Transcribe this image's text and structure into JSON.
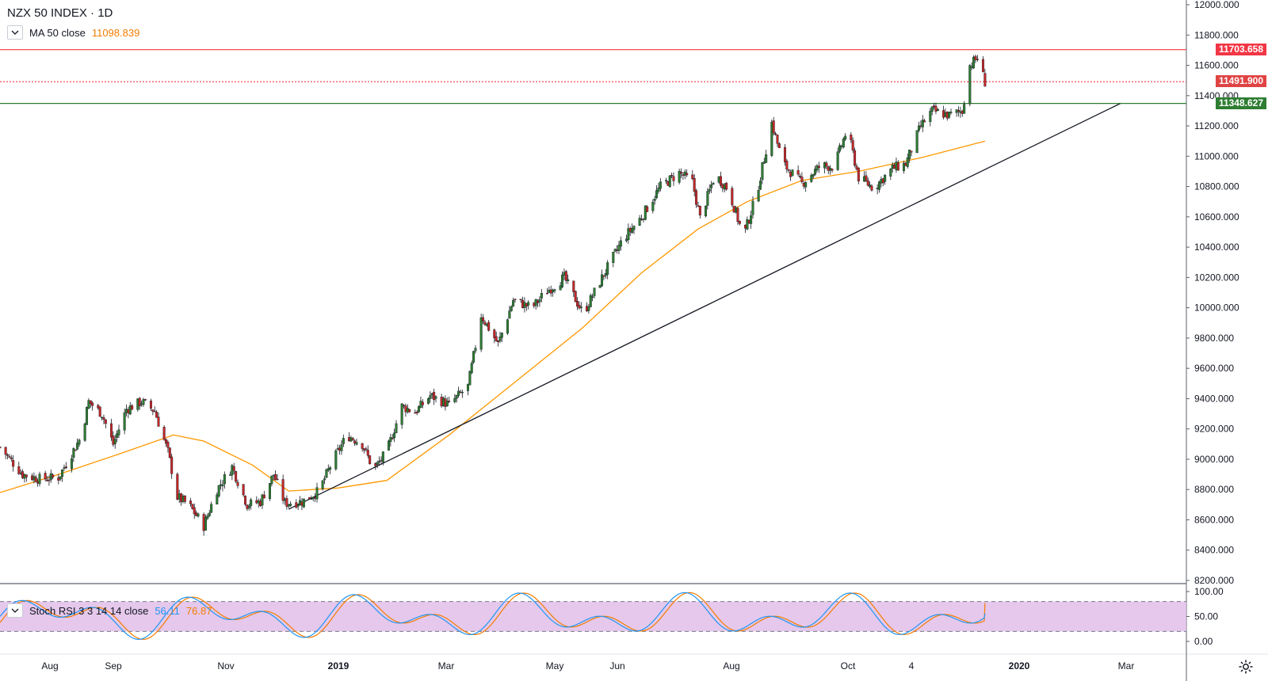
{
  "header": {
    "symbol_title": "NZX 50 INDEX · 1D"
  },
  "indicators": {
    "ma": {
      "label": "MA 50 close",
      "value": "11098.839",
      "color": "#f57c00"
    },
    "stoch": {
      "label": "Stoch RSI 3 3 14 14 close",
      "k_value": "56.11",
      "d_value": "76.87",
      "k_color": "#2196f3",
      "d_color": "#f57c00",
      "band_color": "#e1bee7"
    }
  },
  "price_tags": {
    "red_line": "11703.658",
    "last_price": "11491.900",
    "green_line": "11348.627"
  },
  "colors": {
    "up": "#26a69a",
    "up_body": "#2e7d32",
    "down_body": "#c62828",
    "red_line": "#f23645",
    "green_line": "#2e7d32",
    "trend_line": "#131722",
    "ma_line": "#ff9800",
    "last_price_bg": "#e04343"
  },
  "icons": {
    "collapse": "chevron-down-icon",
    "settings": "gear-icon"
  },
  "chart_data": {
    "type": "candlestick",
    "title": "NZX 50 INDEX · 1D",
    "y_axis": {
      "ylim": [
        8200,
        12000
      ],
      "ticks": [
        "12000.000",
        "11800.000",
        "11600.000",
        "11400.000",
        "11200.000",
        "11000.000",
        "10800.000",
        "10600.000",
        "10400.000",
        "10200.000",
        "10000.000",
        "9800.000",
        "9600.000",
        "9400.000",
        "9200.000",
        "9000.000",
        "8800.000",
        "8600.000",
        "8400.000",
        "8200.000"
      ]
    },
    "x_axis": {
      "ticks": [
        "Aug",
        "Sep",
        "Nov",
        "2019",
        "Mar",
        "May",
        "Jun",
        "Aug",
        "Oct",
        "4",
        "2020",
        "Mar"
      ]
    },
    "horizontal_lines": [
      {
        "value": 11703.658,
        "color": "#f23645",
        "style": "solid"
      },
      {
        "value": 11491.9,
        "color": "#f23645",
        "style": "dotted"
      },
      {
        "value": 11348.627,
        "color": "#2e7d32",
        "style": "solid"
      }
    ],
    "trend_line": {
      "from": [
        "2018-12-20",
        8670
      ],
      "to": [
        "2020-03-05",
        11350
      ]
    },
    "price_path": [
      [
        "2018-07-20",
        9080
      ],
      [
        "2018-08-01",
        8900
      ],
      [
        "2018-08-10",
        8870
      ],
      [
        "2018-08-20",
        8880
      ],
      [
        "2018-09-01",
        9150
      ],
      [
        "2018-09-05",
        9380
      ],
      [
        "2018-09-12",
        9300
      ],
      [
        "2018-09-18",
        9100
      ],
      [
        "2018-09-25",
        9330
      ],
      [
        "2018-10-03",
        9380
      ],
      [
        "2018-10-10",
        9320
      ],
      [
        "2018-10-17",
        9050
      ],
      [
        "2018-10-22",
        8750
      ],
      [
        "2018-10-28",
        8700
      ],
      [
        "2018-11-05",
        8560
      ],
      [
        "2018-11-12",
        8800
      ],
      [
        "2018-11-20",
        8950
      ],
      [
        "2018-11-28",
        8700
      ],
      [
        "2018-12-05",
        8720
      ],
      [
        "2018-12-12",
        8900
      ],
      [
        "2018-12-18",
        8710
      ],
      [
        "2018-12-27",
        8720
      ],
      [
        "2019-01-05",
        8790
      ],
      [
        "2019-01-12",
        8980
      ],
      [
        "2019-01-20",
        9160
      ],
      [
        "2019-01-28",
        9100
      ],
      [
        "2019-02-03",
        8930
      ],
      [
        "2019-02-10",
        9050
      ],
      [
        "2019-02-18",
        9350
      ],
      [
        "2019-02-25",
        9310
      ],
      [
        "2019-03-05",
        9420
      ],
      [
        "2019-03-15",
        9360
      ],
      [
        "2019-03-25",
        9480
      ],
      [
        "2019-04-01",
        9950
      ],
      [
        "2019-04-10",
        9760
      ],
      [
        "2019-04-18",
        10050
      ],
      [
        "2019-04-28",
        10000
      ],
      [
        "2019-05-05",
        10100
      ],
      [
        "2019-05-15",
        10200
      ],
      [
        "2019-05-25",
        9960
      ],
      [
        "2019-06-05",
        10220
      ],
      [
        "2019-06-15",
        10450
      ],
      [
        "2019-06-25",
        10600
      ],
      [
        "2019-07-05",
        10800
      ],
      [
        "2019-07-15",
        10890
      ],
      [
        "2019-07-22",
        10830
      ],
      [
        "2019-07-26",
        10590
      ],
      [
        "2019-08-03",
        10880
      ],
      [
        "2019-08-10",
        10780
      ],
      [
        "2019-08-18",
        10470
      ],
      [
        "2019-08-25",
        10750
      ],
      [
        "2019-09-02",
        11220
      ],
      [
        "2019-09-08",
        10950
      ],
      [
        "2019-09-18",
        10820
      ],
      [
        "2019-09-28",
        10940
      ],
      [
        "2019-10-05",
        10930
      ],
      [
        "2019-10-12",
        11180
      ],
      [
        "2019-10-18",
        10860
      ],
      [
        "2019-10-26",
        10790
      ],
      [
        "2019-11-05",
        10920
      ],
      [
        "2019-11-12",
        10950
      ],
      [
        "2019-11-20",
        11200
      ],
      [
        "2019-11-26",
        11300
      ],
      [
        "2019-12-05",
        11270
      ],
      [
        "2019-12-12",
        11300
      ],
      [
        "2019-12-16",
        11600
      ],
      [
        "2019-12-20",
        11650
      ],
      [
        "2019-12-24",
        11490
      ]
    ],
    "ma_path": [
      [
        "2018-07-20",
        8780
      ],
      [
        "2018-08-20",
        8900
      ],
      [
        "2018-09-20",
        9030
      ],
      [
        "2018-10-20",
        9160
      ],
      [
        "2018-11-05",
        9120
      ],
      [
        "2018-12-01",
        8960
      ],
      [
        "2018-12-20",
        8790
      ],
      [
        "2019-01-15",
        8810
      ],
      [
        "2019-02-10",
        8860
      ],
      [
        "2019-03-15",
        9160
      ],
      [
        "2019-04-20",
        9520
      ],
      [
        "2019-05-25",
        9870
      ],
      [
        "2019-06-25",
        10230
      ],
      [
        "2019-07-25",
        10520
      ],
      [
        "2019-08-20",
        10700
      ],
      [
        "2019-09-18",
        10840
      ],
      [
        "2019-10-18",
        10900
      ],
      [
        "2019-11-20",
        10990
      ],
      [
        "2019-12-24",
        11100
      ]
    ],
    "stoch_rsi": {
      "ylim": [
        0,
        100
      ],
      "ticks": [
        "100.00",
        "50.00",
        "0.00"
      ],
      "band": [
        20,
        80
      ],
      "k_last": 56.11,
      "d_last": 76.87
    }
  }
}
